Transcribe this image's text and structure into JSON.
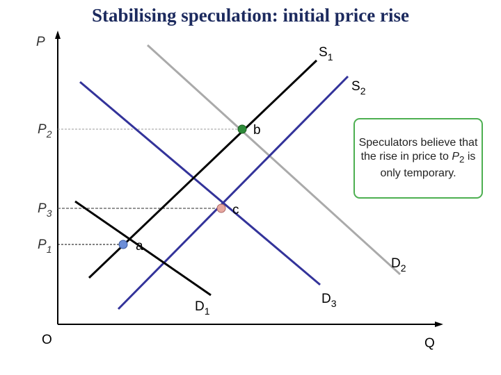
{
  "title": "Stabilising speculation: initial price rise",
  "axes": {
    "y": "P",
    "x": "Q",
    "origin": "O"
  },
  "curves": {
    "s1": {
      "main": "S",
      "sub": "1"
    },
    "s2": {
      "main": "S",
      "sub": "2"
    },
    "d1": {
      "main": "D",
      "sub": "1"
    },
    "d2": {
      "main": "D",
      "sub": "2"
    },
    "d3": {
      "main": "D",
      "sub": "3"
    }
  },
  "prices": {
    "p2": {
      "main": "P",
      "sub": "2"
    },
    "p3": {
      "main": "P",
      "sub": "3"
    },
    "p1": {
      "main": "P",
      "sub": "1"
    }
  },
  "points": {
    "b": "b",
    "c": "c",
    "a": "a"
  },
  "callout": {
    "before": "Speculators believe that the rise in price to ",
    "main": "P",
    "sub": "2",
    "after": " is only temporary."
  }
}
